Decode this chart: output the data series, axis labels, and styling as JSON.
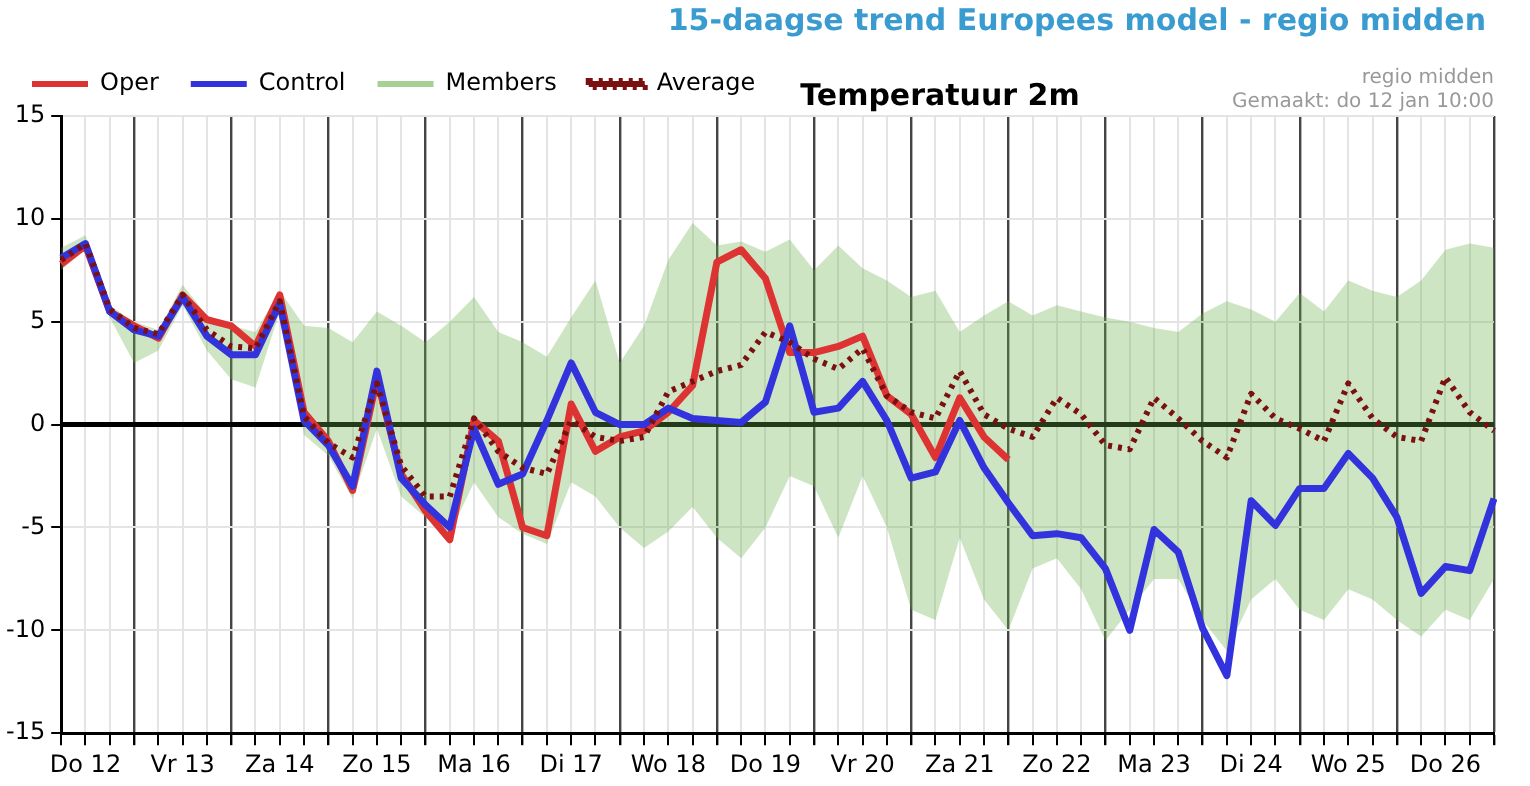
{
  "chart_data": {
    "type": "line",
    "title": "15-daagse trend Europees model - regio midden",
    "subtitle": "Temperatuur 2m",
    "annotations": [
      "regio midden",
      "Gemaakt: do 12 jan 10:00"
    ],
    "categories": [
      null,
      "Do 12",
      null,
      null,
      null,
      "Vr 13",
      null,
      null,
      null,
      "Za 14",
      null,
      null,
      null,
      "Zo 15",
      null,
      null,
      null,
      "Ma 16",
      null,
      null,
      null,
      "Di 17",
      null,
      null,
      null,
      "Wo 18",
      null,
      null,
      null,
      "Do 19",
      null,
      null,
      null,
      "Vr 20",
      null,
      null,
      null,
      "Za 21",
      null,
      null,
      null,
      "Zo 22",
      null,
      null,
      null,
      "Ma 23",
      null,
      null,
      null,
      "Di 24",
      null,
      null,
      null,
      "Wo 25",
      null,
      null,
      null,
      "Do 26",
      null,
      null
    ],
    "series": [
      {
        "name": "Oper",
        "color": "#dd3333",
        "values": [
          7.8,
          8.7,
          5.5,
          4.8,
          4.2,
          6.3,
          5.1,
          4.8,
          3.8,
          6.3,
          0.6,
          -0.8,
          -3.2,
          2.2,
          -2.4,
          -4.2,
          -5.6,
          0.2,
          -0.8,
          -5.0,
          -5.4,
          1.0,
          -1.3,
          -0.6,
          -0.3,
          0.6,
          1.9,
          7.9,
          8.5,
          7.1,
          3.5,
          3.5,
          3.8,
          4.3,
          1.4,
          0.5,
          -1.6,
          1.3,
          -0.6,
          -1.7,
          null,
          null,
          null,
          null,
          null,
          null,
          null,
          null,
          null,
          null,
          null,
          null,
          null,
          null,
          null,
          null,
          null,
          null,
          null,
          null
        ]
      },
      {
        "name": "Control",
        "color": "#3333dd",
        "values": [
          8.1,
          8.8,
          5.5,
          4.6,
          4.3,
          6.2,
          4.3,
          3.4,
          3.4,
          5.9,
          0.2,
          -1.0,
          -3.0,
          2.6,
          -2.6,
          -3.9,
          -5.0,
          -0.2,
          -2.9,
          -2.4,
          0.2,
          3.0,
          0.6,
          0.0,
          0.0,
          0.8,
          0.3,
          0.2,
          0.1,
          1.1,
          4.8,
          0.6,
          0.8,
          2.1,
          0.2,
          -2.6,
          -2.3,
          0.2,
          -2.1,
          -3.8,
          -5.4,
          -5.3,
          -5.5,
          -7.0,
          -10.0,
          -5.1,
          -6.2,
          -9.9,
          -12.2,
          -3.7,
          -4.9,
          -3.1,
          -3.1,
          -1.4,
          -2.6,
          -4.5,
          -8.2,
          -6.9,
          -7.1,
          -3.6
        ]
      },
      {
        "name": "Members",
        "color": "#6ab04c",
        "values": [
          null,
          null,
          null,
          null,
          null,
          null,
          null,
          null,
          null,
          null,
          null,
          null,
          null,
          null,
          null,
          null,
          null,
          null,
          null,
          null,
          null,
          null,
          null,
          null,
          null,
          null,
          null,
          null,
          null,
          null,
          null,
          null,
          null,
          null,
          null,
          null,
          null,
          null,
          null,
          null,
          null,
          null,
          null,
          null,
          null,
          null,
          null,
          null,
          null,
          null,
          null,
          null,
          null,
          null,
          null,
          null,
          null,
          null,
          null,
          null
        ],
        "lower": [
          7.5,
          8.5,
          5.2,
          3.0,
          3.6,
          5.8,
          3.6,
          2.2,
          1.8,
          5.5,
          -0.5,
          -1.5,
          -3.6,
          -0.2,
          -3.5,
          -4.5,
          -5.3,
          -2.8,
          -4.5,
          -5.3,
          -5.8,
          -2.8,
          -3.5,
          -5.0,
          -6.0,
          -5.2,
          -4.0,
          -5.5,
          -6.5,
          -5.0,
          -2.5,
          -3.0,
          -5.5,
          -2.5,
          -5.0,
          -9.0,
          -9.5,
          -5.5,
          -8.5,
          -10.0,
          -7.0,
          -6.5,
          -8.0,
          -10.5,
          -9.0,
          -7.5,
          -7.5,
          -9.5,
          -11.0,
          -8.5,
          -7.5,
          -9.0,
          -9.5,
          -8.0,
          -8.5,
          -9.5,
          -10.3,
          -9.0,
          -9.5,
          -7.5
        ],
        "upper": [
          8.6,
          9.2,
          5.8,
          5.0,
          4.6,
          6.8,
          5.3,
          4.8,
          4.5,
          6.5,
          4.8,
          4.7,
          4.0,
          5.5,
          4.8,
          4.0,
          5.0,
          6.2,
          4.5,
          4.0,
          3.3,
          5.2,
          7.0,
          3.0,
          4.8,
          8.0,
          9.8,
          8.7,
          8.9,
          8.4,
          9.0,
          7.5,
          8.7,
          7.6,
          7.0,
          6.2,
          6.5,
          4.5,
          5.3,
          6.0,
          5.3,
          5.8,
          5.5,
          5.2,
          5.0,
          4.7,
          4.5,
          5.4,
          6.0,
          5.6,
          5.0,
          6.4,
          5.5,
          7.0,
          6.5,
          6.2,
          7.0,
          8.5,
          8.8,
          8.6
        ]
      },
      {
        "name": "Average",
        "color": "#7b1010",
        "line_style": "dotted",
        "values": [
          8.0,
          8.8,
          5.6,
          4.7,
          4.4,
          6.3,
          4.6,
          3.8,
          3.7,
          6.0,
          0.4,
          -0.9,
          -1.6,
          2.0,
          -2.0,
          -3.5,
          -3.5,
          0.3,
          -1.3,
          -2.1,
          -2.4,
          0.2,
          -0.6,
          -0.8,
          -0.6,
          1.6,
          2.1,
          2.6,
          2.9,
          4.5,
          4.0,
          3.2,
          2.7,
          3.7,
          1.4,
          0.6,
          0.3,
          2.6,
          0.5,
          -0.2,
          -0.6,
          1.3,
          0.5,
          -1.0,
          -1.2,
          1.3,
          0.3,
          -0.8,
          -1.6,
          1.5,
          0.3,
          -0.2,
          -0.8,
          2.0,
          0.3,
          -0.6,
          -0.8,
          2.3,
          0.6,
          -0.3
        ]
      }
    ],
    "ylim": [
      -15,
      15
    ],
    "yticks": [
      -15,
      -10,
      -5,
      0,
      5,
      10,
      15
    ],
    "grid": true,
    "legend": "top left",
    "marker": "none",
    "ref_lines": [
      {
        "axis": "y",
        "value": 0,
        "color": "#000000"
      }
    ]
  }
}
